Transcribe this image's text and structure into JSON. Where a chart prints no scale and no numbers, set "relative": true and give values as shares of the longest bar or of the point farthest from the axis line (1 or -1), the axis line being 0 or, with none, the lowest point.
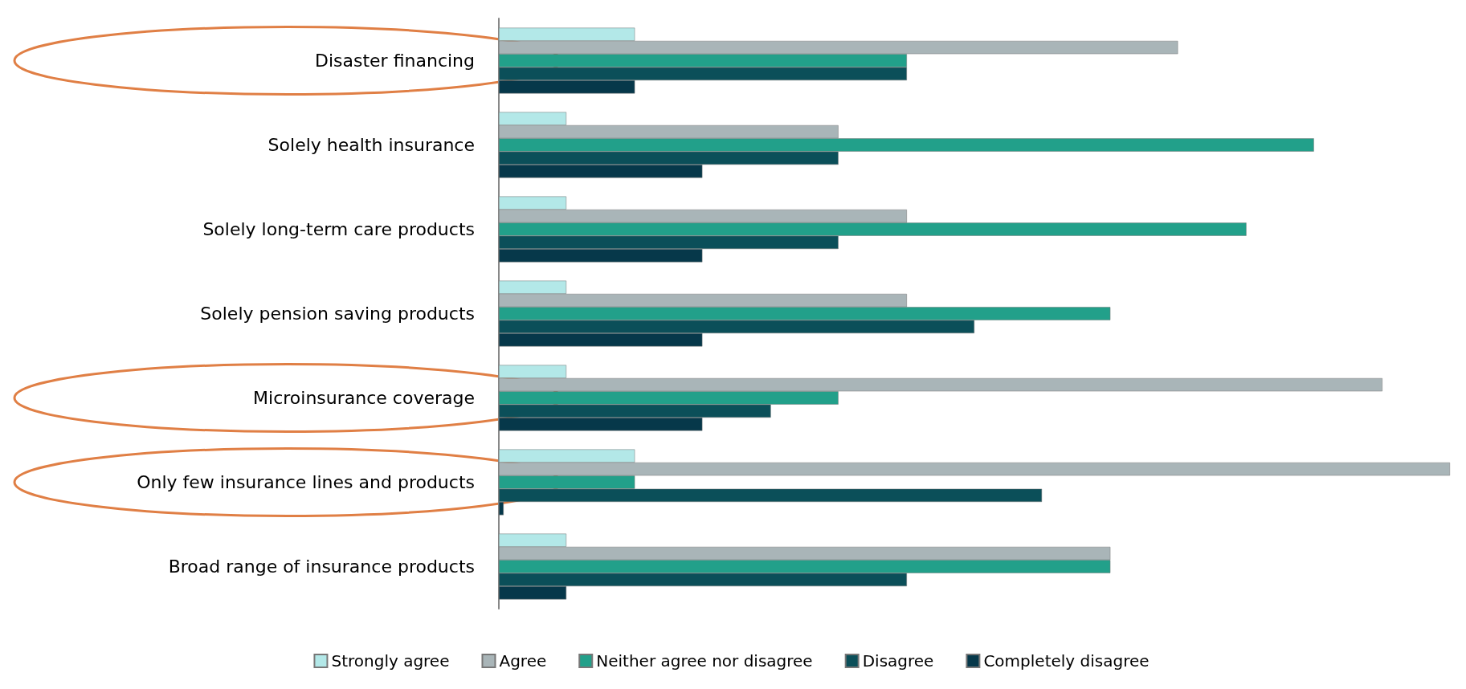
{
  "chart_data": {
    "type": "bar",
    "orientation": "horizontal",
    "relative": true,
    "legend": "bottom",
    "categories": [
      "Disaster financing",
      "Solely health insurance",
      "Solely long-term care products",
      "Solely pension saving products",
      "Microinsurance coverage",
      "Only few insurance lines and products",
      "Broad range of insurance products"
    ],
    "series": [
      {
        "name": "Strongly agree",
        "color": "#b3e8e8",
        "values": [
          0.143,
          0.071,
          0.071,
          0.071,
          0.071,
          0.143,
          0.071
        ]
      },
      {
        "name": "Agree",
        "color": "#a9b5b8",
        "values": [
          0.714,
          0.357,
          0.429,
          0.429,
          0.929,
          1,
          0.643
        ]
      },
      {
        "name": "Neither agree nor disagree",
        "color": "#22a08a",
        "values": [
          0.429,
          0.857,
          0.786,
          0.643,
          0.357,
          0.143,
          0.643
        ]
      },
      {
        "name": "Disagree",
        "color": "#0b4f59",
        "values": [
          0.429,
          0.357,
          0.357,
          0.5,
          0.286,
          0.571,
          0.429
        ]
      },
      {
        "name": "Completely disagree",
        "color": "#06384a",
        "values": [
          0.143,
          0.214,
          0.214,
          0.214,
          0.214,
          0.005,
          0.071
        ]
      }
    ]
  }
}
